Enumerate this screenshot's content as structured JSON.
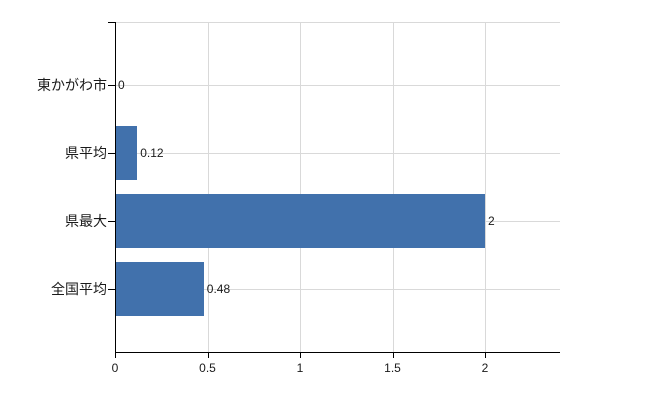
{
  "chart_data": {
    "type": "bar",
    "orientation": "horizontal",
    "title": "",
    "xlabel": "",
    "ylabel": "",
    "categories": [
      "東かがわ市",
      "県平均",
      "県最大",
      "全国平均"
    ],
    "values": [
      0,
      0.12,
      2,
      0.48
    ],
    "data_labels": [
      "0",
      "0.12",
      "2",
      "0.48"
    ],
    "x_ticks": [
      0,
      0.5,
      1,
      1.5,
      2
    ],
    "x_tick_labels": [
      "0",
      "0.5",
      "1",
      "1.5",
      "2"
    ],
    "xlim": [
      0,
      2.4
    ],
    "grid": true,
    "legend": false,
    "colors": {
      "bar": "#4171ac",
      "grid": "#d9d9d9",
      "axis": "#000000",
      "text": "#1a1a1a",
      "background": "#ffffff"
    }
  }
}
